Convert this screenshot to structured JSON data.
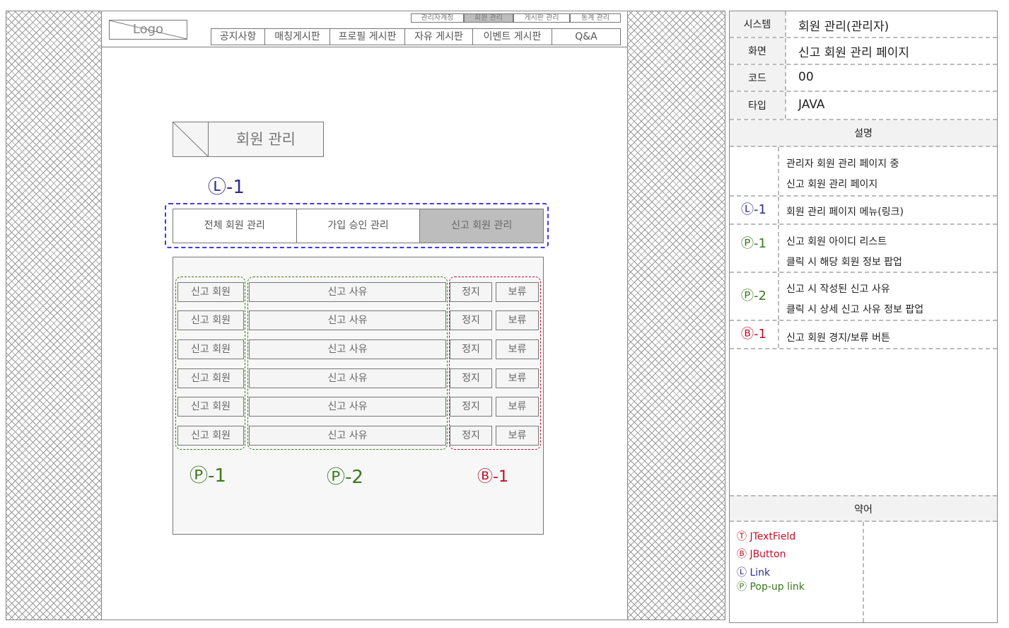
{
  "header": {
    "logo": "Logo",
    "util_links": [
      "관리자계정",
      "회원 관리",
      "게시판 관리",
      "통계 관리"
    ],
    "nav": [
      "공지사항",
      "매칭게시판",
      "프로필 게시판",
      "자유 게시판",
      "이벤트 게시판",
      "Q&A"
    ]
  },
  "page": {
    "title": "회원 관리",
    "tabs": [
      "전체 회원 관리",
      "가입 승인 관리",
      "신고 회원 관리"
    ],
    "rows": [
      {
        "member": "신고 회원",
        "reason": "신고 사유",
        "suspend": "정지",
        "hold": "보류"
      },
      {
        "member": "신고 회원",
        "reason": "신고 사유",
        "suspend": "정지",
        "hold": "보류"
      },
      {
        "member": "신고 회원",
        "reason": "신고 사유",
        "suspend": "정지",
        "hold": "보류"
      },
      {
        "member": "신고 회원",
        "reason": "신고 사유",
        "suspend": "정지",
        "hold": "보류"
      },
      {
        "member": "신고 회원",
        "reason": "신고 사유",
        "suspend": "정지",
        "hold": "보류"
      },
      {
        "member": "신고 회원",
        "reason": "신고 사유",
        "suspend": "정지",
        "hold": "보류"
      }
    ],
    "markers": {
      "l1": "Ⓛ-1",
      "p1": "Ⓟ-1",
      "p2": "Ⓟ-2",
      "b1": "Ⓑ-1"
    }
  },
  "spec": {
    "system_label": "시스템",
    "system_value": "회원 관리(관리자)",
    "screen_label": "화면",
    "screen_value": "신고 회원 관리 페이지",
    "code_label": "코드",
    "code_value": "00",
    "type_label": "타입",
    "type_value": "JAVA",
    "desc_header": "설명",
    "desc": [
      {
        "key": "",
        "lines": [
          "관리자 회원 관리 페이지 중",
          "신고 회원 관리 페이지"
        ]
      },
      {
        "key": "Ⓛ-1",
        "lines": [
          "회원 관리 페이지 메뉴(링크)"
        ]
      },
      {
        "key": "Ⓟ-1",
        "lines": [
          "신고 회원 아이디 리스트",
          "클릭 시 해당 회원 정보 팝업"
        ]
      },
      {
        "key": "Ⓟ-2",
        "lines": [
          "신고 시 작성된 신고 사유",
          "클릭 시 상세 신고 사유 정보 팝업"
        ]
      },
      {
        "key": "Ⓑ-1",
        "lines": [
          "신고 회원 경지/보류 버튼"
        ]
      }
    ],
    "abbr_header": "약어",
    "abbr": [
      "Ⓣ JTextField",
      "Ⓑ JButton",
      "Ⓛ Link",
      "Ⓟ Pop-up link"
    ]
  },
  "colors": {
    "link": "#2e2e8c",
    "popup": "#3a7a1e",
    "button": "#c0102a",
    "textfield": "#c0102a",
    "tabs_frame": "#3a3af0"
  }
}
